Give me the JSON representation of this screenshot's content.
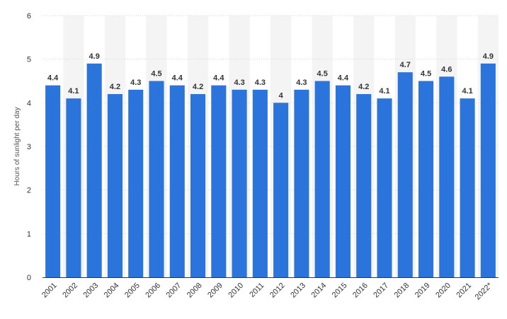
{
  "chart_data": {
    "type": "bar",
    "categories": [
      "2001",
      "2002",
      "2003",
      "2004",
      "2005",
      "2006",
      "2007",
      "2008",
      "2009",
      "2010",
      "2011",
      "2012",
      "2013",
      "2014",
      "2015",
      "2016",
      "2017",
      "2018",
      "2019",
      "2020",
      "2021",
      "2022*"
    ],
    "values": [
      4.4,
      4.1,
      4.9,
      4.2,
      4.3,
      4.5,
      4.4,
      4.2,
      4.4,
      4.3,
      4.3,
      4,
      4.3,
      4.5,
      4.4,
      4.2,
      4.1,
      4.7,
      4.5,
      4.6,
      4.1,
      4.9
    ],
    "data_labels": [
      "4.4",
      "4.1",
      "4.9",
      "4.2",
      "4.3",
      "4.5",
      "4.4",
      "4.2",
      "4.4",
      "4.3",
      "4.3",
      "4",
      "4.3",
      "4.5",
      "4.4",
      "4.2",
      "4.1",
      "4.7",
      "4.5",
      "4.6",
      "4.1",
      "4.9"
    ],
    "ylabel": "Hours of sunlight per day",
    "ylim": [
      0,
      6
    ],
    "yticks": [
      "0",
      "1",
      "2",
      "3",
      "4",
      "5",
      "6"
    ],
    "grid": true,
    "bar_color": "#2a74dc",
    "band_color": "#f4f4f4"
  }
}
